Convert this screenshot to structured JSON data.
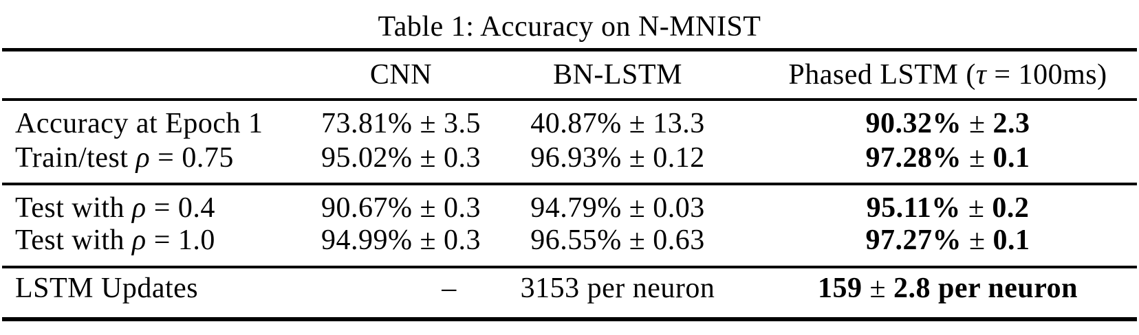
{
  "title": "Table 1: Accuracy on N-MNIST",
  "header": {
    "row_label": "",
    "cnn": "CNN",
    "bn_lstm": "BN-LSTM",
    "phased_pre": "Phased LSTM (",
    "phased_var": "τ",
    "phased_post": " = 100ms)"
  },
  "rows": [
    {
      "label_pre": "Accuracy at Epoch 1",
      "label_var": "",
      "label_post": "",
      "cnn": "73.81% ± 3.5",
      "bn_lstm": "40.87% ± 13.3",
      "phased_b1": "90.32%",
      "phased_pm": "±",
      "phased_b2": "2.3"
    },
    {
      "label_pre": "Train/test ",
      "label_var": "ρ",
      "label_post": " = 0.75",
      "cnn": "95.02% ± 0.3",
      "bn_lstm": "96.93% ± 0.12",
      "phased_b1": "97.28%",
      "phased_pm": "±",
      "phased_b2": "0.1"
    },
    {
      "label_pre": "Test with ",
      "label_var": "ρ",
      "label_post": " = 0.4",
      "cnn": "90.67% ± 0.3",
      "bn_lstm": "94.79% ± 0.03",
      "phased_b1": "95.11%",
      "phased_pm": "±",
      "phased_b2": "0.2"
    },
    {
      "label_pre": "Test with ",
      "label_var": "ρ",
      "label_post": " = 1.0",
      "cnn": "94.99% ± 0.3",
      "bn_lstm": "96.55% ± 0.63",
      "phased_b1": "97.27%",
      "phased_pm": "±",
      "phased_b2": "0.1"
    },
    {
      "label_pre": "LSTM Updates",
      "label_var": "",
      "label_post": "",
      "cnn": "–",
      "bn_lstm": "3153 per neuron",
      "phased_b1": "159",
      "phased_pm": "±",
      "phased_b2": "2.8 per neuron"
    }
  ],
  "colors": {
    "text": "#000000",
    "background": "#ffffff",
    "rule": "#000000"
  },
  "chart_data": {
    "type": "table",
    "title": "Table 1: Accuracy on N-MNIST",
    "columns": [
      "",
      "CNN",
      "BN-LSTM",
      "Phased LSTM (τ = 100ms)"
    ],
    "rows": [
      [
        "Accuracy at Epoch 1",
        "73.81% ± 3.5",
        "40.87% ± 13.3",
        "90.32% ± 2.3"
      ],
      [
        "Train/test ρ = 0.75",
        "95.02% ± 0.3",
        "96.93% ± 0.12",
        "97.28% ± 0.1"
      ],
      [
        "Test with ρ = 0.4",
        "90.67% ± 0.3",
        "94.79% ± 0.03",
        "95.11% ± 0.2"
      ],
      [
        "Test with ρ = 1.0",
        "94.99% ± 0.3",
        "96.55% ± 0.63",
        "97.27% ± 0.1"
      ],
      [
        "LSTM Updates",
        "–",
        "3153 per neuron",
        "159 ± 2.8 per neuron"
      ]
    ],
    "notes": "Phased LSTM column values rendered in bold; row groups separated by horizontal rules (booktabs style)."
  }
}
